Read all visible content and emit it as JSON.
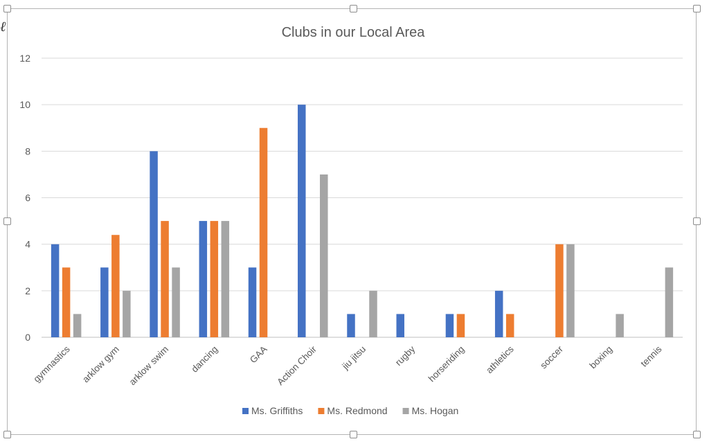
{
  "chart_data": {
    "type": "bar",
    "title": "Clubs in our Local Area",
    "xlabel": "",
    "ylabel": "",
    "ylim": [
      0,
      12
    ],
    "yticks": [
      0,
      2,
      4,
      6,
      8,
      10,
      12
    ],
    "grid": true,
    "legend_position": "bottom",
    "categories": [
      "gymnastics",
      "arklow gym",
      "arklow swim",
      "dancing",
      "GAA",
      "Action Choir",
      "jiu jitsu",
      "rugby",
      "horseriding",
      "athletics",
      "soccer",
      "boxing",
      "tennis"
    ],
    "series": [
      {
        "name": "Ms. Griffiths",
        "color": "#4472C4",
        "values": [
          4,
          3,
          8,
          5,
          3,
          10,
          1,
          1,
          1,
          2,
          0,
          0,
          0
        ]
      },
      {
        "name": "Ms. Redmond",
        "color": "#ED7D31",
        "values": [
          3,
          4.4,
          5,
          5,
          9,
          0,
          0,
          0,
          1,
          1,
          4,
          0,
          0
        ]
      },
      {
        "name": "Ms. Hogan",
        "color": "#A5A5A5",
        "values": [
          1,
          2,
          3,
          5,
          0,
          7,
          2,
          0,
          0,
          0,
          4,
          1,
          3
        ]
      }
    ]
  }
}
